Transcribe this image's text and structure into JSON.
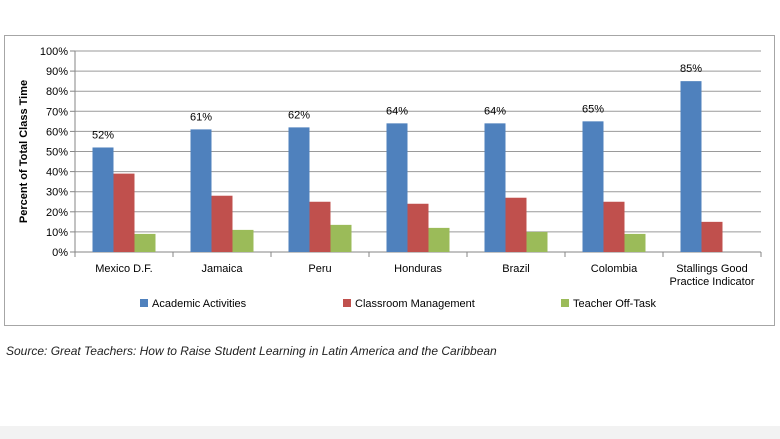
{
  "chart_data": {
    "type": "bar",
    "title": "",
    "ylabel": "Percent of Total Class Time",
    "xlabel": "",
    "ylim": [
      0,
      100
    ],
    "yticks": [
      "0%",
      "10%",
      "20%",
      "30%",
      "40%",
      "50%",
      "60%",
      "70%",
      "80%",
      "90%",
      "100%"
    ],
    "categories": [
      [
        "Mexico D.F."
      ],
      [
        "Jamaica"
      ],
      [
        "Peru"
      ],
      [
        "Honduras"
      ],
      [
        "Brazil"
      ],
      [
        "Colombia"
      ],
      [
        "Stallings Good",
        "Practice Indicator"
      ]
    ],
    "series": [
      {
        "name": "Academic Activities",
        "color": "#4f81bd",
        "values": [
          52,
          61,
          62,
          64,
          64,
          65,
          85
        ],
        "labels": [
          "52%",
          "61%",
          "62%",
          "64%",
          "64%",
          "65%",
          "85%"
        ]
      },
      {
        "name": "Classroom Management",
        "color": "#c0504d",
        "values": [
          39,
          28,
          25,
          24,
          27,
          25,
          15
        ]
      },
      {
        "name": "Teacher Off-Task",
        "color": "#9bbb59",
        "values": [
          9,
          11,
          13.5,
          12,
          10,
          9,
          null
        ]
      }
    ],
    "grid": true,
    "legend_position": "bottom"
  },
  "source_note": "Source: Great Teachers: How to Raise Student Learning in Latin America and the Caribbean"
}
